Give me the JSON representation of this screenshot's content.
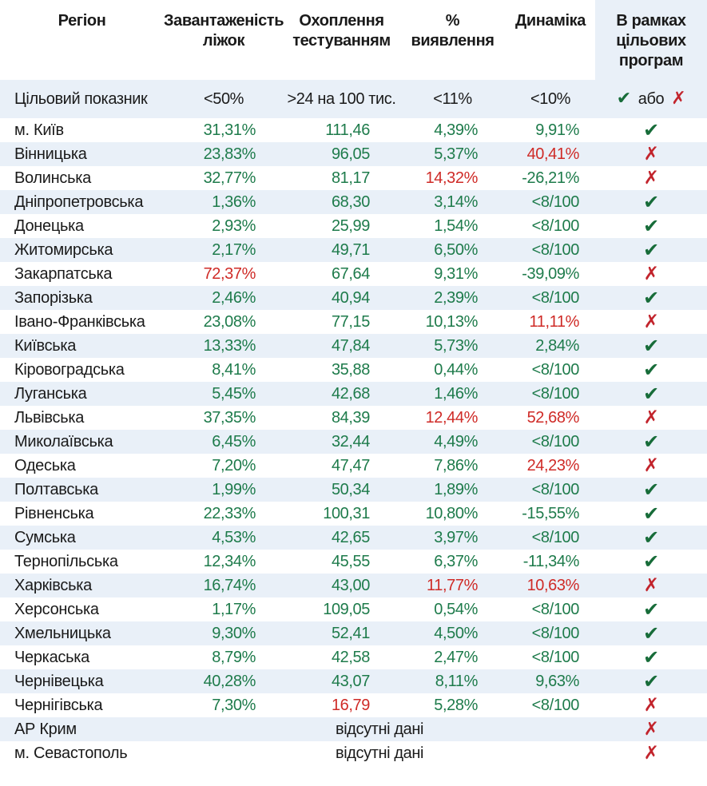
{
  "colors": {
    "green": "#1e7b4b",
    "red": "#cf2b27",
    "check_green": "#176c39",
    "cross_red": "#c2242c",
    "row_alt_bg": "#e9f0f8",
    "text": "#1a1a1a"
  },
  "marks": {
    "check": "✔",
    "cross": "✗"
  },
  "table": {
    "headers": {
      "region": "Регіон",
      "bed": "Завантаженість\nліжок",
      "test": "Охоплення\nтестуванням",
      "det": "%\nвиявлення",
      "dyn": "Динаміка",
      "program": "В рамках\nцільових\nпрограм"
    },
    "target": {
      "label": "Цільовий показник",
      "bed": "<50%",
      "test": ">24 на 100 тис.",
      "det": "<11%",
      "dyn": "<10%",
      "or": "або"
    },
    "no_data_text": "відсутні дані",
    "rows": [
      {
        "region": "м. Київ",
        "bed": {
          "v": "31,31%",
          "c": "green"
        },
        "test": {
          "v": "111,46",
          "c": "green"
        },
        "det": {
          "v": "4,39%",
          "c": "green"
        },
        "dyn": {
          "v": "9,91%",
          "c": "green"
        },
        "mark": "check"
      },
      {
        "region": "Вінницька",
        "bed": {
          "v": "23,83%",
          "c": "green"
        },
        "test": {
          "v": "96,05",
          "c": "green"
        },
        "det": {
          "v": "5,37%",
          "c": "green"
        },
        "dyn": {
          "v": "40,41%",
          "c": "red"
        },
        "mark": "cross"
      },
      {
        "region": "Волинська",
        "bed": {
          "v": "32,77%",
          "c": "green"
        },
        "test": {
          "v": "81,17",
          "c": "green"
        },
        "det": {
          "v": "14,32%",
          "c": "red"
        },
        "dyn": {
          "v": "-26,21%",
          "c": "green"
        },
        "mark": "cross"
      },
      {
        "region": "Дніпропетровська",
        "bed": {
          "v": "1,36%",
          "c": "green"
        },
        "test": {
          "v": "68,30",
          "c": "green"
        },
        "det": {
          "v": "3,14%",
          "c": "green"
        },
        "dyn": {
          "v": "<8/100",
          "c": "green"
        },
        "mark": "check"
      },
      {
        "region": "Донецька",
        "bed": {
          "v": "2,93%",
          "c": "green"
        },
        "test": {
          "v": "25,99",
          "c": "green"
        },
        "det": {
          "v": "1,54%",
          "c": "green"
        },
        "dyn": {
          "v": "<8/100",
          "c": "green"
        },
        "mark": "check"
      },
      {
        "region": "Житомирська",
        "bed": {
          "v": "2,17%",
          "c": "green"
        },
        "test": {
          "v": "49,71",
          "c": "green"
        },
        "det": {
          "v": "6,50%",
          "c": "green"
        },
        "dyn": {
          "v": "<8/100",
          "c": "green"
        },
        "mark": "check"
      },
      {
        "region": "Закарпатська",
        "bed": {
          "v": "72,37%",
          "c": "red"
        },
        "test": {
          "v": "67,64",
          "c": "green"
        },
        "det": {
          "v": "9,31%",
          "c": "green"
        },
        "dyn": {
          "v": "-39,09%",
          "c": "green"
        },
        "mark": "cross"
      },
      {
        "region": "Запорізька",
        "bed": {
          "v": "2,46%",
          "c": "green"
        },
        "test": {
          "v": "40,94",
          "c": "green"
        },
        "det": {
          "v": "2,39%",
          "c": "green"
        },
        "dyn": {
          "v": "<8/100",
          "c": "green"
        },
        "mark": "check"
      },
      {
        "region": "Івано-Франківська",
        "bed": {
          "v": "23,08%",
          "c": "green"
        },
        "test": {
          "v": "77,15",
          "c": "green"
        },
        "det": {
          "v": "10,13%",
          "c": "green"
        },
        "dyn": {
          "v": "11,11%",
          "c": "red"
        },
        "mark": "cross"
      },
      {
        "region": "Київська",
        "bed": {
          "v": "13,33%",
          "c": "green"
        },
        "test": {
          "v": "47,84",
          "c": "green"
        },
        "det": {
          "v": "5,73%",
          "c": "green"
        },
        "dyn": {
          "v": "2,84%",
          "c": "green"
        },
        "mark": "check"
      },
      {
        "region": "Кіровоградська",
        "bed": {
          "v": "8,41%",
          "c": "green"
        },
        "test": {
          "v": "35,88",
          "c": "green"
        },
        "det": {
          "v": "0,44%",
          "c": "green"
        },
        "dyn": {
          "v": "<8/100",
          "c": "green"
        },
        "mark": "check"
      },
      {
        "region": "Луганська",
        "bed": {
          "v": "5,45%",
          "c": "green"
        },
        "test": {
          "v": "42,68",
          "c": "green"
        },
        "det": {
          "v": "1,46%",
          "c": "green"
        },
        "dyn": {
          "v": "<8/100",
          "c": "green"
        },
        "mark": "check"
      },
      {
        "region": "Львівська",
        "bed": {
          "v": "37,35%",
          "c": "green"
        },
        "test": {
          "v": "84,39",
          "c": "green"
        },
        "det": {
          "v": "12,44%",
          "c": "red"
        },
        "dyn": {
          "v": "52,68%",
          "c": "red"
        },
        "mark": "cross"
      },
      {
        "region": "Миколаївська",
        "bed": {
          "v": "6,45%",
          "c": "green"
        },
        "test": {
          "v": "32,44",
          "c": "green"
        },
        "det": {
          "v": "4,49%",
          "c": "green"
        },
        "dyn": {
          "v": "<8/100",
          "c": "green"
        },
        "mark": "check"
      },
      {
        "region": "Одеська",
        "bed": {
          "v": "7,20%",
          "c": "green"
        },
        "test": {
          "v": "47,47",
          "c": "green"
        },
        "det": {
          "v": "7,86%",
          "c": "green"
        },
        "dyn": {
          "v": "24,23%",
          "c": "red"
        },
        "mark": "cross"
      },
      {
        "region": "Полтавська",
        "bed": {
          "v": "1,99%",
          "c": "green"
        },
        "test": {
          "v": "50,34",
          "c": "green"
        },
        "det": {
          "v": "1,89%",
          "c": "green"
        },
        "dyn": {
          "v": "<8/100",
          "c": "green"
        },
        "mark": "check"
      },
      {
        "region": "Рівненська",
        "bed": {
          "v": "22,33%",
          "c": "green"
        },
        "test": {
          "v": "100,31",
          "c": "green"
        },
        "det": {
          "v": "10,80%",
          "c": "green"
        },
        "dyn": {
          "v": "-15,55%",
          "c": "green"
        },
        "mark": "check"
      },
      {
        "region": "Сумська",
        "bed": {
          "v": "4,53%",
          "c": "green"
        },
        "test": {
          "v": "42,65",
          "c": "green"
        },
        "det": {
          "v": "3,97%",
          "c": "green"
        },
        "dyn": {
          "v": "<8/100",
          "c": "green"
        },
        "mark": "check"
      },
      {
        "region": "Тернопільська",
        "bed": {
          "v": "12,34%",
          "c": "green"
        },
        "test": {
          "v": "45,55",
          "c": "green"
        },
        "det": {
          "v": "6,37%",
          "c": "green"
        },
        "dyn": {
          "v": "-11,34%",
          "c": "green"
        },
        "mark": "check"
      },
      {
        "region": "Харківська",
        "bed": {
          "v": "16,74%",
          "c": "green"
        },
        "test": {
          "v": "43,00",
          "c": "green"
        },
        "det": {
          "v": "11,77%",
          "c": "red"
        },
        "dyn": {
          "v": "10,63%",
          "c": "red"
        },
        "mark": "cross"
      },
      {
        "region": "Херсонська",
        "bed": {
          "v": "1,17%",
          "c": "green"
        },
        "test": {
          "v": "109,05",
          "c": "green"
        },
        "det": {
          "v": "0,54%",
          "c": "green"
        },
        "dyn": {
          "v": "<8/100",
          "c": "green"
        },
        "mark": "check"
      },
      {
        "region": "Хмельницька",
        "bed": {
          "v": "9,30%",
          "c": "green"
        },
        "test": {
          "v": "52,41",
          "c": "green"
        },
        "det": {
          "v": "4,50%",
          "c": "green"
        },
        "dyn": {
          "v": "<8/100",
          "c": "green"
        },
        "mark": "check"
      },
      {
        "region": "Черкаська",
        "bed": {
          "v": "8,79%",
          "c": "green"
        },
        "test": {
          "v": "42,58",
          "c": "green"
        },
        "det": {
          "v": "2,47%",
          "c": "green"
        },
        "dyn": {
          "v": "<8/100",
          "c": "green"
        },
        "mark": "check"
      },
      {
        "region": "Чернівецька",
        "bed": {
          "v": "40,28%",
          "c": "green"
        },
        "test": {
          "v": "43,07",
          "c": "green"
        },
        "det": {
          "v": "8,11%",
          "c": "green"
        },
        "dyn": {
          "v": "9,63%",
          "c": "green"
        },
        "mark": "check"
      },
      {
        "region": "Чернігівська",
        "bed": {
          "v": "7,30%",
          "c": "green"
        },
        "test": {
          "v": "16,79",
          "c": "red"
        },
        "det": {
          "v": "5,28%",
          "c": "green"
        },
        "dyn": {
          "v": "<8/100",
          "c": "green"
        },
        "mark": "cross"
      },
      {
        "region": "АР Крим",
        "no_data": true,
        "mark": "cross"
      },
      {
        "region": "м. Севастополь",
        "no_data": true,
        "mark": "cross"
      }
    ]
  }
}
